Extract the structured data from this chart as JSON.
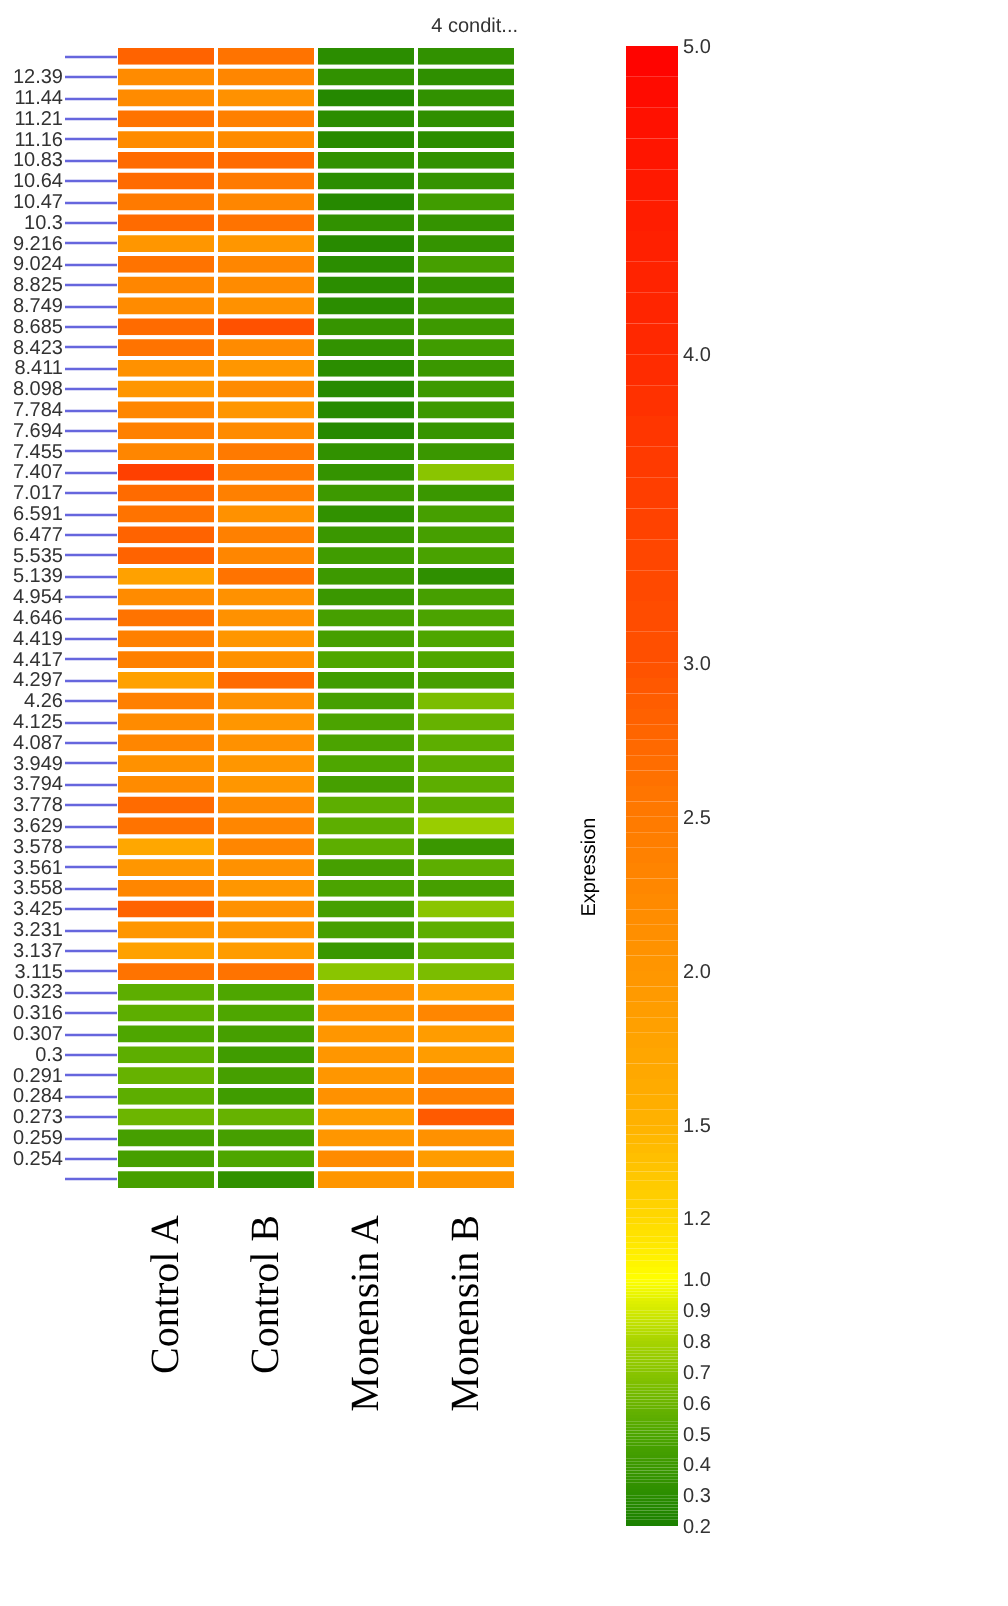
{
  "chart_data": {
    "type": "heatmap",
    "annotations": [
      "4 condit..."
    ],
    "clabel": "Expression",
    "categories": [
      "Control A",
      "Control B",
      "Monensin A",
      "Monensin B"
    ],
    "y_categories": [
      null,
      "12.39",
      "11.44",
      "11.21",
      "11.16",
      "10.83",
      "10.64",
      "10.47",
      "10.3",
      "9.216",
      "9.024",
      "8.825",
      "8.749",
      "8.685",
      "8.423",
      "8.411",
      "8.098",
      "7.784",
      "7.694",
      "7.455",
      "7.407",
      "7.017",
      "6.591",
      "6.477",
      "5.535",
      "5.139",
      "4.954",
      "4.646",
      "4.419",
      "4.417",
      "4.297",
      "4.26",
      "4.125",
      "4.087",
      "3.949",
      "3.794",
      "3.778",
      "3.629",
      "3.578",
      "3.561",
      "3.558",
      "3.425",
      "3.231",
      "3.137",
      "3.115",
      "0.323",
      "0.316",
      "0.307",
      "0.3",
      "0.291",
      "0.284",
      "0.273",
      "0.259",
      "0.254",
      null
    ],
    "cells": [
      [
        2.8,
        2.6,
        0.3,
        0.33
      ],
      [
        2.2,
        2.3,
        0.33,
        0.32
      ],
      [
        2.2,
        2.1,
        0.26,
        0.33
      ],
      [
        2.6,
        2.4,
        0.3,
        0.32
      ],
      [
        2.2,
        2.2,
        0.28,
        0.3
      ],
      [
        2.7,
        2.7,
        0.33,
        0.33
      ],
      [
        2.7,
        2.5,
        0.3,
        0.35
      ],
      [
        2.5,
        2.3,
        0.27,
        0.42
      ],
      [
        2.7,
        2.6,
        0.33,
        0.35
      ],
      [
        2.0,
        2.0,
        0.28,
        0.35
      ],
      [
        2.6,
        2.3,
        0.3,
        0.45
      ],
      [
        2.3,
        2.2,
        0.3,
        0.35
      ],
      [
        2.2,
        2.1,
        0.3,
        0.38
      ],
      [
        2.7,
        3.0,
        0.36,
        0.4
      ],
      [
        2.6,
        2.2,
        0.34,
        0.42
      ],
      [
        2.1,
        2.0,
        0.3,
        0.38
      ],
      [
        2.0,
        2.2,
        0.28,
        0.4
      ],
      [
        2.3,
        2.0,
        0.28,
        0.4
      ],
      [
        2.4,
        2.2,
        0.27,
        0.36
      ],
      [
        2.3,
        2.5,
        0.33,
        0.38
      ],
      [
        3.5,
        2.5,
        0.35,
        0.7
      ],
      [
        2.7,
        2.4,
        0.4,
        0.38
      ],
      [
        2.6,
        2.1,
        0.33,
        0.45
      ],
      [
        2.8,
        2.4,
        0.38,
        0.45
      ],
      [
        2.8,
        2.3,
        0.42,
        0.47
      ],
      [
        1.8,
        2.6,
        0.4,
        0.32
      ],
      [
        2.2,
        2.1,
        0.38,
        0.45
      ],
      [
        2.6,
        2.1,
        0.45,
        0.48
      ],
      [
        2.4,
        2.0,
        0.45,
        0.5
      ],
      [
        2.4,
        2.1,
        0.5,
        0.5
      ],
      [
        1.8,
        2.7,
        0.42,
        0.45
      ],
      [
        2.4,
        2.1,
        0.45,
        0.65
      ],
      [
        2.2,
        2.0,
        0.48,
        0.58
      ],
      [
        2.3,
        2.1,
        0.48,
        0.55
      ],
      [
        2.1,
        2.0,
        0.5,
        0.55
      ],
      [
        2.2,
        2.0,
        0.45,
        0.55
      ],
      [
        2.7,
        2.2,
        0.55,
        0.55
      ],
      [
        2.6,
        2.3,
        0.55,
        0.75
      ],
      [
        1.7,
        2.3,
        0.55,
        0.38
      ],
      [
        2.0,
        2.1,
        0.45,
        0.55
      ],
      [
        2.3,
        2.0,
        0.48,
        0.45
      ],
      [
        2.8,
        2.1,
        0.45,
        0.7
      ],
      [
        2.0,
        2.0,
        0.45,
        0.55
      ],
      [
        1.8,
        1.9,
        0.38,
        0.55
      ],
      [
        2.6,
        2.6,
        0.7,
        0.65
      ],
      [
        0.55,
        0.5,
        2.1,
        1.8
      ],
      [
        0.55,
        0.5,
        2.1,
        2.3
      ],
      [
        0.5,
        0.45,
        2.0,
        1.9
      ],
      [
        0.55,
        0.42,
        2.0,
        1.9
      ],
      [
        0.58,
        0.45,
        2.0,
        2.3
      ],
      [
        0.55,
        0.42,
        2.1,
        2.4
      ],
      [
        0.6,
        0.58,
        1.9,
        2.9
      ],
      [
        0.45,
        0.45,
        2.0,
        2.1
      ],
      [
        0.45,
        0.5,
        2.2,
        1.9
      ],
      [
        0.45,
        0.33,
        2.0,
        2.0
      ]
    ],
    "clim": [
      0.2,
      5.0
    ],
    "cticks": [
      0.2,
      0.3,
      0.4,
      0.5,
      0.6,
      0.7,
      0.8,
      0.9,
      {
        "value": 1.0,
        "label": "1.0"
      },
      1.2,
      1.5,
      {
        "value": 2.0,
        "label": "2.0"
      },
      2.5,
      {
        "value": 3.0,
        "label": "3.0"
      },
      {
        "value": 4.0,
        "label": "4.0"
      },
      {
        "value": 5.0,
        "label": "5.0"
      }
    ]
  }
}
